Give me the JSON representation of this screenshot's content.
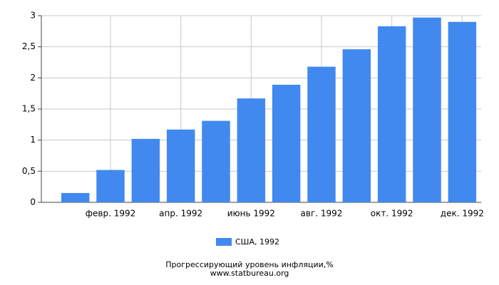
{
  "chart_data": {
    "type": "bar",
    "title": "Прогрессирующий уровень инфляции,%",
    "source": "www.statbureau.org",
    "categories": [
      null,
      "февр. 1992",
      null,
      "апр. 1992",
      null,
      "июнь 1992",
      null,
      "авг. 1992",
      null,
      "окт. 1992",
      null,
      "дек. 1992"
    ],
    "series": [
      {
        "name": "США, 1992",
        "color": "#4189ee",
        "values": [
          0.15,
          0.52,
          1.02,
          1.17,
          1.31,
          1.67,
          1.89,
          2.18,
          2.46,
          2.83,
          2.97,
          2.9
        ]
      }
    ],
    "ylim": [
      0,
      3
    ],
    "yticks": [
      0,
      {
        "value": 0.5,
        "label": "0,5"
      },
      1,
      {
        "value": 1.5,
        "label": "1,5"
      },
      2,
      {
        "value": 2.5,
        "label": "2,5"
      },
      3
    ],
    "grid": true
  }
}
